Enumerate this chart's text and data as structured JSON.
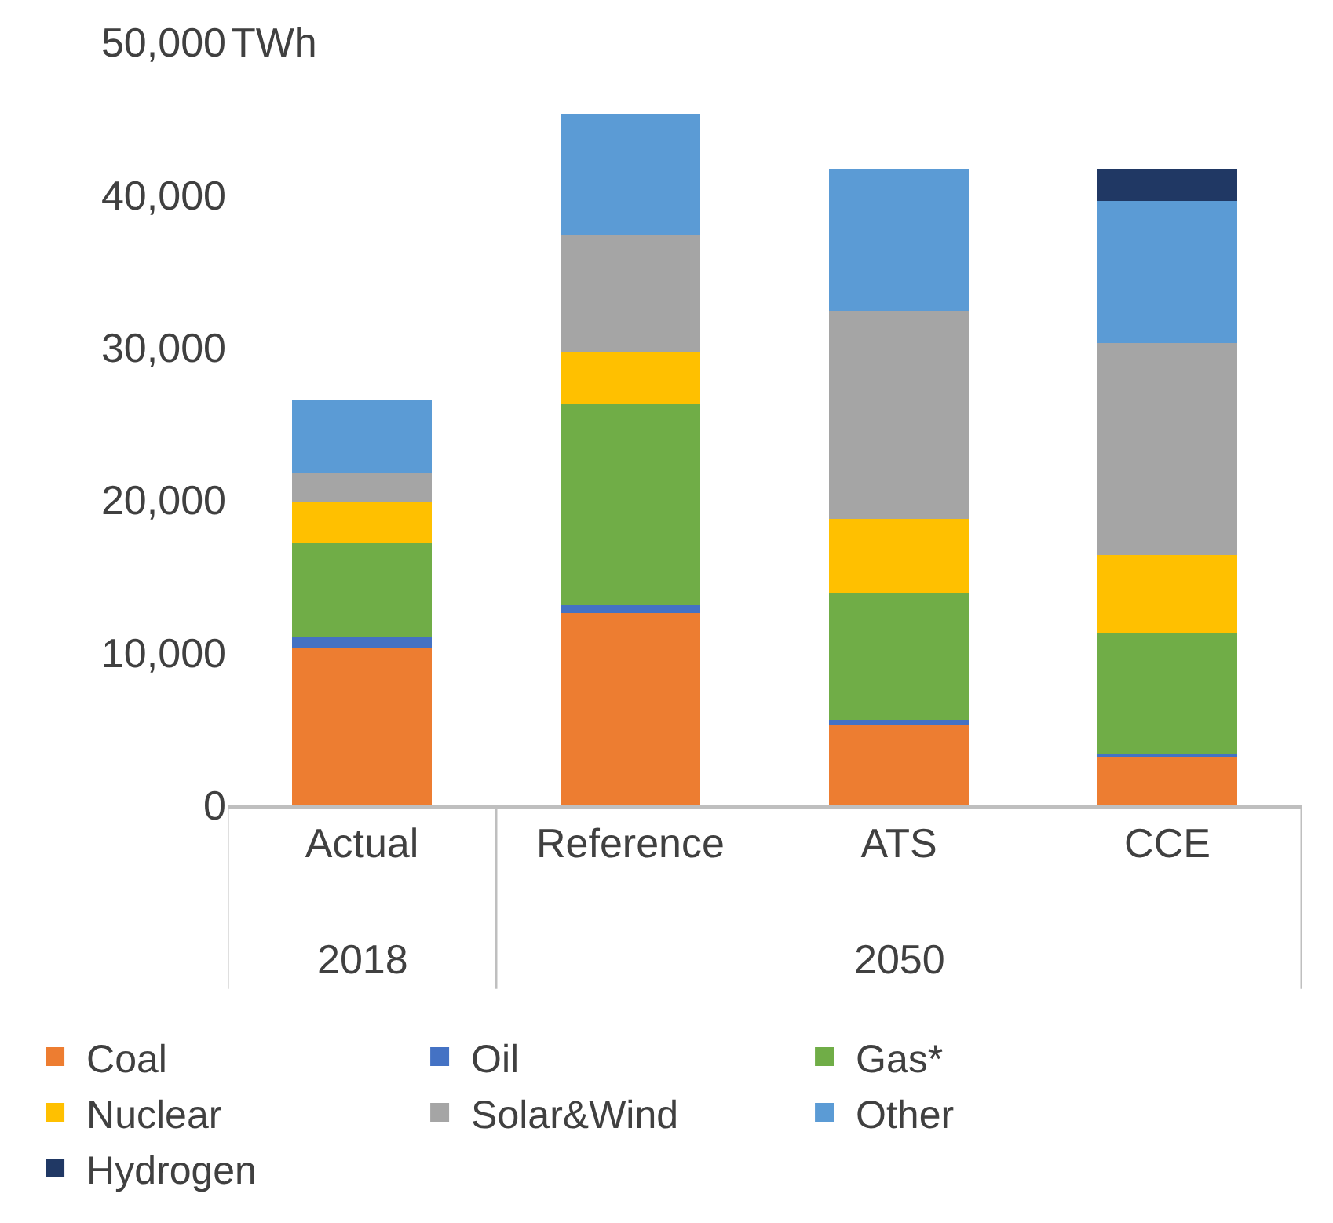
{
  "chart_data": {
    "type": "bar",
    "stacked": true,
    "ylabel": "TWh",
    "categories": [
      "Actual",
      "Reference",
      "ATS",
      "CCE"
    ],
    "annotations": [
      "2018",
      "2050"
    ],
    "series": [
      {
        "name": "Coal",
        "color": "#ed7d31",
        "values": [
          10300,
          12600,
          5300,
          3200
        ]
      },
      {
        "name": "Oil",
        "color": "#4472c4",
        "values": [
          700,
          500,
          300,
          200
        ]
      },
      {
        "name": "Gas*",
        "color": "#70ad47",
        "values": [
          6200,
          13200,
          8300,
          7900
        ]
      },
      {
        "name": "Nuclear",
        "color": "#ffc000",
        "values": [
          2700,
          3400,
          4900,
          5100
        ]
      },
      {
        "name": "Solar&Wind",
        "color": "#a5a5a5",
        "values": [
          1900,
          7700,
          13600,
          13900
        ]
      },
      {
        "name": "Other",
        "color": "#5b9bd5",
        "values": [
          4800,
          7900,
          9300,
          9300
        ]
      },
      {
        "name": "Hydrogen",
        "color": "#203864",
        "values": [
          null,
          null,
          null,
          2100
        ]
      }
    ],
    "ylim": [
      0,
      50000
    ],
    "yticks": [
      {
        "value": 0,
        "label": "0"
      },
      {
        "value": 10000,
        "label": "10,000"
      },
      {
        "value": 20000,
        "label": "20,000"
      },
      {
        "value": 30000,
        "label": "30,000"
      },
      {
        "value": 40000,
        "label": "40,000"
      },
      {
        "value": 50000,
        "label": "50,000"
      }
    ],
    "grid": false,
    "legend": "bottom"
  }
}
